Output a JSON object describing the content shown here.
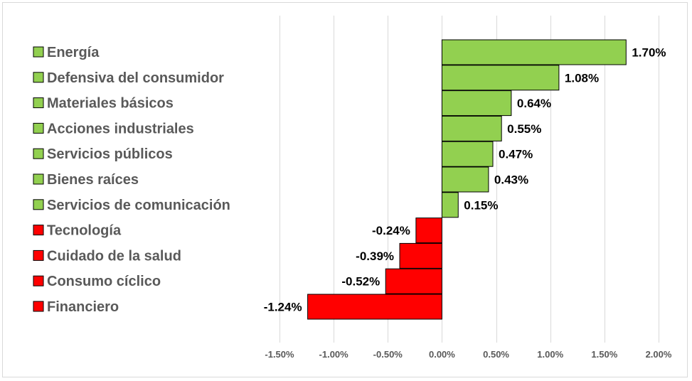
{
  "chart_data": {
    "type": "bar",
    "orientation": "horizontal",
    "categories": [
      "Energía",
      "Defensiva del consumidor",
      "Materiales básicos",
      "Acciones industriales",
      "Servicios públicos",
      "Bienes raíces",
      "Servicios de comunicación",
      "Tecnología",
      "Cuidado de la salud",
      "Consumo cíclico",
      "Financiero"
    ],
    "values": [
      1.7,
      1.08,
      0.64,
      0.55,
      0.47,
      0.43,
      0.15,
      -0.24,
      -0.39,
      -0.52,
      -1.24
    ],
    "data_labels": [
      "1.70%",
      "1.08%",
      "0.64%",
      "0.55%",
      "0.47%",
      "0.43%",
      "0.15%",
      "-0.24%",
      "-0.39%",
      "-0.52%",
      "-1.24%"
    ],
    "xlim": [
      -1.5,
      2.0
    ],
    "x_ticks": [
      -1.5,
      -1.0,
      -0.5,
      0.0,
      0.5,
      1.0,
      1.5,
      2.0
    ],
    "x_tick_labels": [
      "-1.50%",
      "-1.00%",
      "-0.50%",
      "0.00%",
      "0.50%",
      "1.00%",
      "1.50%",
      "2.00%"
    ],
    "grid": "vertical",
    "legend_position": "left",
    "colors": {
      "positive": "#92d050",
      "negative": "#ff0000",
      "bar_border": "#000000",
      "grid": "#d9d9d9"
    },
    "title": "",
    "xlabel": "",
    "ylabel": ""
  }
}
